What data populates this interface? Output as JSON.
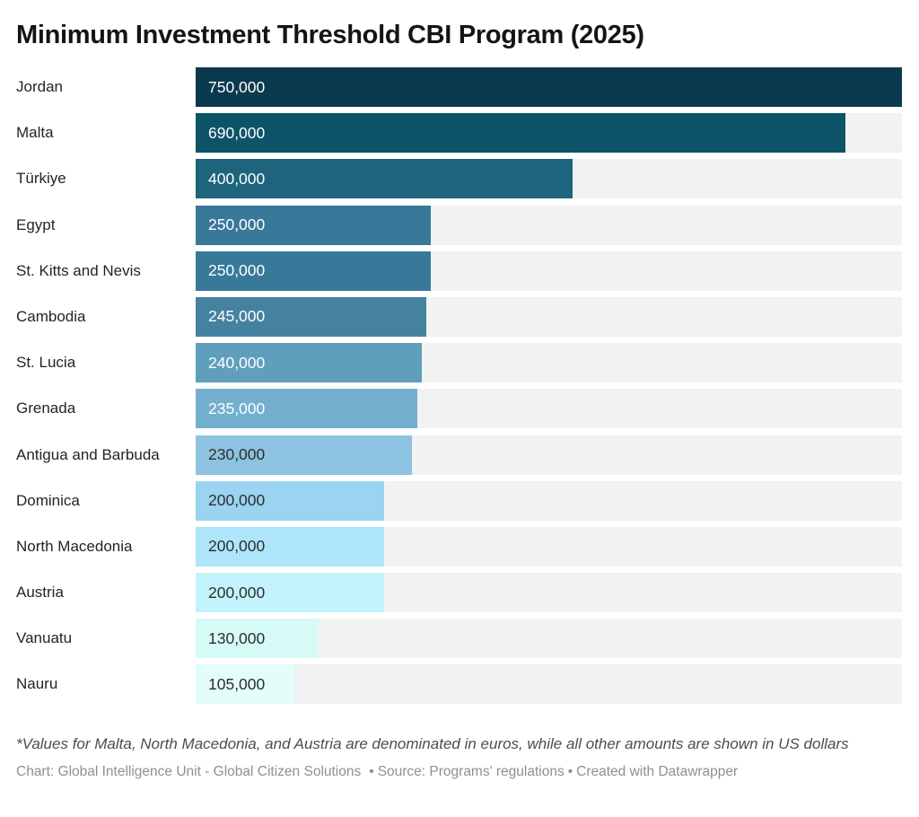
{
  "title": "Minimum Investment Threshold CBI Program (2025)",
  "chart_data": {
    "type": "bar",
    "orientation": "horizontal",
    "title": "Minimum Investment Threshold CBI Program (2025)",
    "xlabel": "",
    "ylabel": "",
    "xlim": [
      0,
      750000
    ],
    "grid": false,
    "legend": false,
    "categories": [
      "Jordan",
      "Malta",
      "Türkiye",
      "Egypt",
      "St. Kitts and Nevis",
      "Cambodia",
      "St. Lucia",
      "Grenada",
      "Antigua and Barbuda",
      "Dominica",
      "North Macedonia",
      "Austria",
      "Vanuatu",
      "Nauru"
    ],
    "values": [
      750000,
      690000,
      400000,
      250000,
      250000,
      245000,
      240000,
      235000,
      230000,
      200000,
      200000,
      200000,
      130000,
      105000
    ],
    "value_labels": [
      "750,000",
      "690,000",
      "400,000",
      "250,000",
      "250,000",
      "245,000",
      "240,000",
      "235,000",
      "230,000",
      "200,000",
      "200,000",
      "200,000",
      "130,000",
      "105,000"
    ],
    "bar_colors": [
      "#0b3a4f",
      "#0d5468",
      "#1d647c",
      "#38799a",
      "#38799a",
      "#45829f",
      "#5f9fbc",
      "#73afce",
      "#8cc3e0",
      "#9ad4f0",
      "#aee5fa",
      "#c3f3fc",
      "#d6fbf7",
      "#e3fdfb"
    ],
    "value_text_colors": [
      "#ffffff",
      "#ffffff",
      "#ffffff",
      "#ffffff",
      "#ffffff",
      "#ffffff",
      "#ffffff",
      "#ffffff",
      "#2e2e2e",
      "#2e2e2e",
      "#2e2e2e",
      "#2e2e2e",
      "#2e2e2e",
      "#2e2e2e"
    ],
    "track_color": "#f1f2f2"
  },
  "footnote": "*Values for Malta, North Macedonia, and Austria are denominated in euros, while all other amounts are shown in US dollars",
  "source": {
    "chart_credit": "Chart: Global Intelligence Unit - Global Citizen Solutions",
    "separator": "•",
    "source_credit": "Source: Programs' regulations",
    "tool_credit": "Created with Datawrapper"
  }
}
